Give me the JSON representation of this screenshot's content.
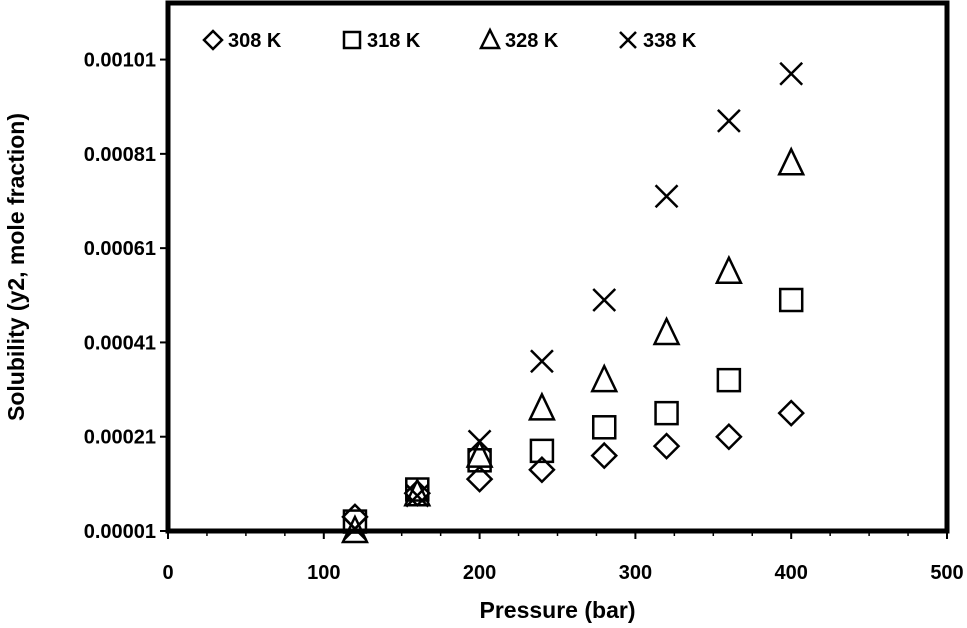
{
  "chart_data": {
    "type": "scatter",
    "title": "",
    "xlabel": "Pressure (bar)",
    "ylabel": "Solubility (y2, mole fraction)",
    "xlim": [
      0,
      500
    ],
    "ylim": [
      1e-05,
      0.00113
    ],
    "xticks": [
      0,
      100,
      200,
      300,
      400,
      500
    ],
    "xtick_labels": [
      "0",
      "100",
      "200",
      "300",
      "400",
      "500"
    ],
    "yticks": [
      1e-05,
      0.00021,
      0.00041,
      0.00061,
      0.00081,
      0.00101
    ],
    "ytick_labels": [
      "0.00001",
      "0.00021",
      "0.00041",
      "0.00061",
      "0.00081",
      "0.00101"
    ],
    "grid": false,
    "legend_position": "top",
    "series": [
      {
        "name": "308 K",
        "marker": "diamond",
        "x": [
          120,
          160,
          200,
          240,
          280,
          320,
          360,
          400
        ],
        "y": [
          4e-05,
          9e-05,
          0.00012,
          0.00014,
          0.00017,
          0.00019,
          0.00021,
          0.00026
        ]
      },
      {
        "name": "318 K",
        "marker": "square",
        "x": [
          120,
          160,
          200,
          240,
          280,
          320,
          360,
          400
        ],
        "y": [
          3e-05,
          9.8e-05,
          0.00016,
          0.00018,
          0.00023,
          0.00026,
          0.00033,
          0.0005
        ]
      },
      {
        "name": "328 K",
        "marker": "triangle",
        "x": [
          120,
          160,
          200,
          240,
          280,
          320,
          360,
          400
        ],
        "y": [
          1e-05,
          8.8e-05,
          0.00017,
          0.00027,
          0.00033,
          0.00043,
          0.00056,
          0.00079
        ]
      },
      {
        "name": "338 K",
        "marker": "cross",
        "x": [
          120,
          160,
          200,
          240,
          280,
          320,
          360,
          400
        ],
        "y": [
          1.5e-05,
          8.5e-05,
          0.0002,
          0.00037,
          0.0005,
          0.00072,
          0.00088,
          0.00098
        ]
      }
    ]
  }
}
